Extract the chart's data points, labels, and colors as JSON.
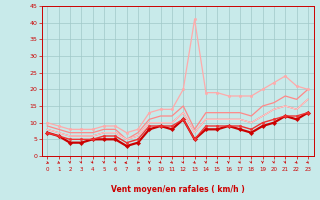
{
  "bg_color": "#c8eaea",
  "grid_color": "#a0c8c8",
  "xlabel": "Vent moyen/en rafales ( km/h )",
  "x_values": [
    0,
    1,
    2,
    3,
    4,
    5,
    6,
    7,
    8,
    9,
    10,
    11,
    12,
    13,
    14,
    15,
    16,
    17,
    18,
    19,
    20,
    21,
    22,
    23
  ],
  "series": [
    {
      "color": "#cc0000",
      "linewidth": 1.6,
      "marker": "D",
      "markersize": 2.2,
      "values": [
        7,
        6,
        4,
        4,
        5,
        5,
        5,
        3,
        4,
        8,
        9,
        8,
        11,
        5,
        8,
        8,
        9,
        8,
        7,
        9,
        10,
        12,
        11,
        13
      ]
    },
    {
      "color": "#ee3333",
      "linewidth": 1.0,
      "marker": "o",
      "markersize": 1.8,
      "values": [
        7,
        6,
        5,
        5,
        5,
        6,
        6,
        4,
        5,
        9,
        9,
        9,
        11,
        5,
        9,
        9,
        9,
        9,
        8,
        10,
        11,
        12,
        12,
        13
      ]
    },
    {
      "color": "#ff6666",
      "linewidth": 0.9,
      "marker": null,
      "markersize": 0,
      "values": [
        8,
        7,
        6,
        6,
        6,
        7,
        7,
        5,
        6,
        10,
        10,
        10,
        13,
        7,
        11,
        11,
        11,
        11,
        10,
        12,
        14,
        15,
        14,
        17
      ]
    },
    {
      "color": "#ff8888",
      "linewidth": 0.9,
      "marker": null,
      "markersize": 0,
      "values": [
        9,
        8,
        7,
        7,
        7,
        8,
        8,
        5,
        7,
        11,
        12,
        12,
        15,
        8,
        13,
        13,
        13,
        13,
        12,
        15,
        16,
        18,
        17,
        20
      ]
    },
    {
      "color": "#ffaaaa",
      "linewidth": 0.9,
      "marker": "o",
      "markersize": 1.8,
      "values": [
        10,
        9,
        8,
        8,
        8,
        9,
        9,
        7,
        8,
        13,
        14,
        14,
        20,
        41,
        19,
        19,
        18,
        18,
        18,
        20,
        22,
        24,
        21,
        20
      ]
    },
    {
      "color": "#ffcccc",
      "linewidth": 0.8,
      "marker": null,
      "markersize": 0,
      "values": [
        8,
        7,
        6,
        6,
        6,
        7,
        7,
        5,
        6,
        10,
        10,
        10,
        13,
        7,
        11,
        11,
        11,
        11,
        10,
        12,
        14,
        15,
        14,
        17
      ]
    }
  ],
  "ylim": [
    0,
    45
  ],
  "yticks": [
    0,
    5,
    10,
    15,
    20,
    25,
    30,
    35,
    40,
    45
  ],
  "xticks": [
    0,
    1,
    2,
    3,
    4,
    5,
    6,
    7,
    8,
    9,
    10,
    11,
    12,
    13,
    14,
    15,
    16,
    17,
    18,
    19,
    20,
    21,
    22,
    23
  ],
  "tick_color": "#cc0000",
  "label_color": "#cc0000",
  "arrow_angles": [
    130,
    140,
    175,
    170,
    165,
    175,
    170,
    260,
    200,
    180,
    160,
    155,
    165,
    150,
    175,
    160,
    175,
    165,
    170,
    178,
    170,
    172,
    155,
    160
  ]
}
